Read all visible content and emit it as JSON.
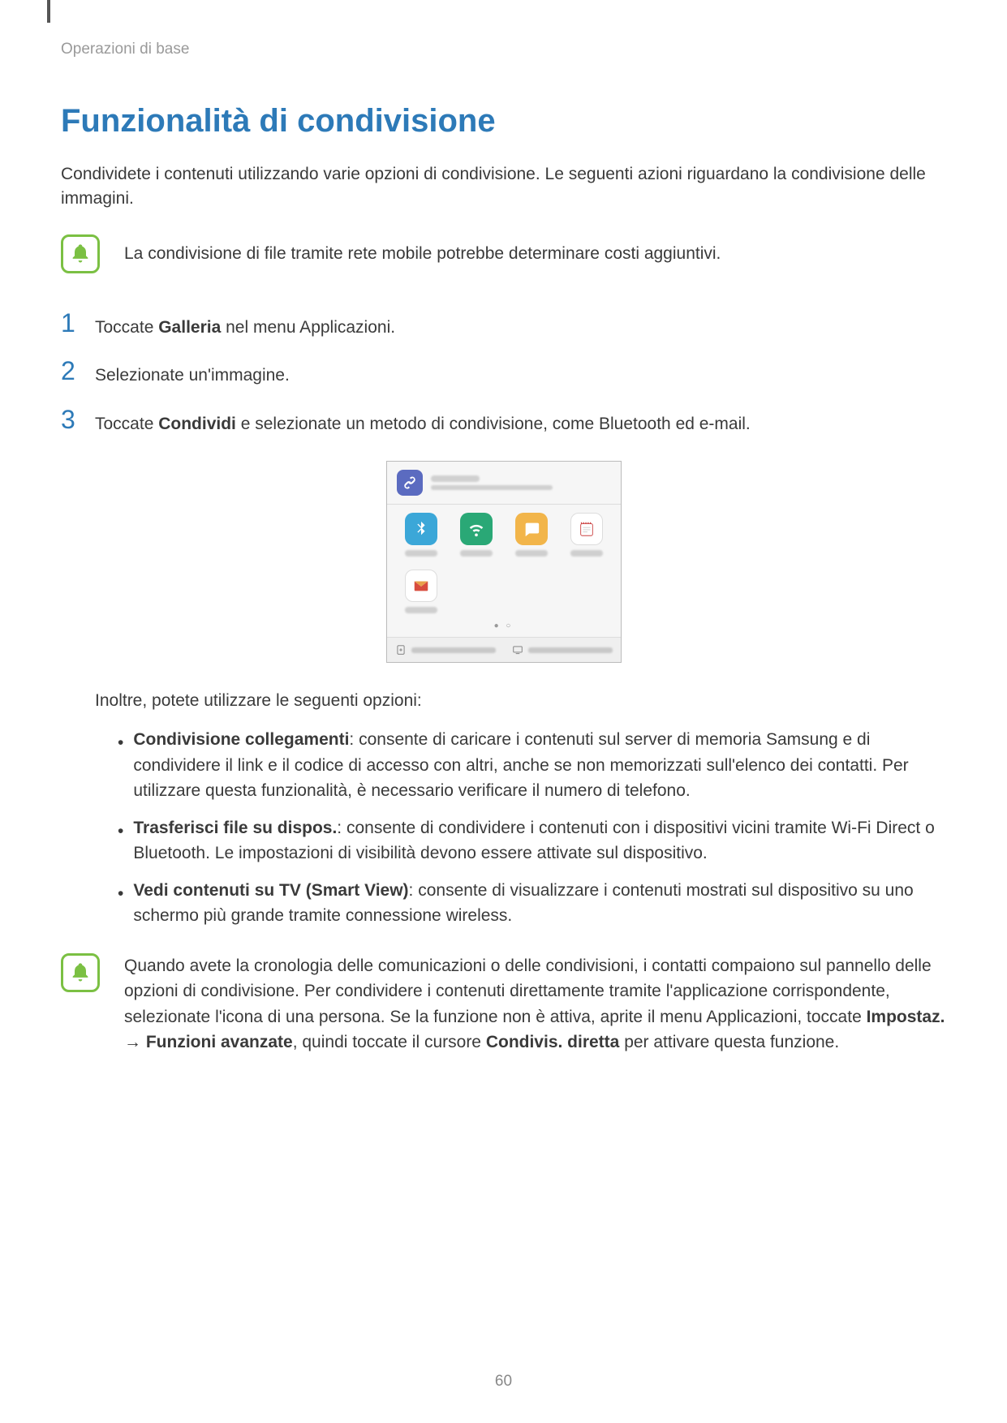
{
  "colors": {
    "heading": "#2d7ab8",
    "stepnum": "#2d7ab8",
    "icon_border": "#7bc043",
    "bell_fill": "#7bc043",
    "text": "#3a3a3a",
    "muted": "#9a9a9a"
  },
  "breadcrumb": "Operazioni di base",
  "heading": "Funzionalità di condivisione",
  "intro": "Condividete i contenuti utilizzando varie opzioni di condivisione. Le seguenti azioni riguardano la condivisione delle immagini.",
  "note1": "La condivisione di file tramite rete mobile potrebbe determinare costi aggiuntivi.",
  "steps": [
    {
      "num": "1",
      "pre": "Toccate ",
      "bold": "Galleria",
      "post": " nel menu Applicazioni."
    },
    {
      "num": "2",
      "pre": "Selezionate un'immagine.",
      "bold": "",
      "post": ""
    },
    {
      "num": "3",
      "pre": "Toccate ",
      "bold": "Condividi",
      "post": " e selezionate un metodo di condivisione, come Bluetooth ed e-mail."
    }
  ],
  "share_panel": {
    "icons": [
      {
        "name": "bluetooth-icon",
        "bg": "#3ba7d8"
      },
      {
        "name": "wifi-direct-icon",
        "bg": "#2aa876"
      },
      {
        "name": "messages-icon",
        "bg": "#f2b54a"
      },
      {
        "name": "memo-icon",
        "bg": "#ffffff"
      },
      {
        "name": "email-icon",
        "bg": "#ffffff"
      }
    ]
  },
  "after_text": "Inoltre, potete utilizzare le seguenti opzioni:",
  "bullets": [
    {
      "bold": "Condivisione collegamenti",
      "rest": ": consente di caricare i contenuti sul server di memoria Samsung e di condividere il link e il codice di accesso con altri, anche se non memorizzati sull'elenco dei contatti. Per utilizzare questa funzionalità, è necessario verificare il numero di telefono."
    },
    {
      "bold": "Trasferisci file su dispos.",
      "rest": ": consente di condividere i contenuti con i dispositivi vicini tramite Wi-Fi Direct o Bluetooth. Le impostazioni di visibilità devono essere attivate sul dispositivo."
    },
    {
      "bold": "Vedi contenuti su TV (Smart View)",
      "rest": ": consente di visualizzare i contenuti mostrati sul dispositivo su uno schermo più grande tramite connessione wireless."
    }
  ],
  "note2": {
    "part1": "Quando avete la cronologia delle comunicazioni o delle condivisioni, i contatti compaiono sul pannello delle opzioni di condivisione. Per condividere i contenuti direttamente tramite l'applicazione corrispondente, selezionate l'icona di una persona. Se la funzione non è attiva, aprite il menu Applicazioni, toccate ",
    "b1": "Impostaz.",
    "arrow": " → ",
    "b2": "Funzioni avanzate",
    "part2": ", quindi toccate il cursore ",
    "b3": "Condivis. diretta",
    "part3": " per attivare questa funzione."
  },
  "page_number": "60"
}
